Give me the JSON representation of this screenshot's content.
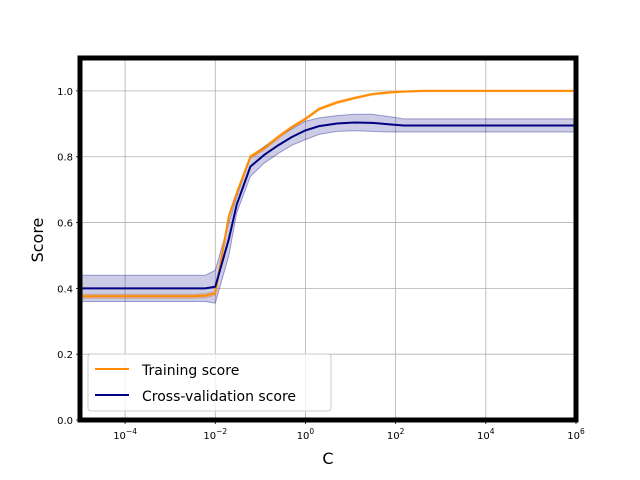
{
  "chart_data": {
    "type": "line",
    "xlabel": "C",
    "ylabel": "Score",
    "xscale": "log",
    "xlim": [
      1e-05,
      1000000.0
    ],
    "ylim": [
      0.0,
      1.1
    ],
    "grid": true,
    "legend_position": "lower-left",
    "x_tick_labels": [
      {
        "value": 0.0001,
        "base": "10",
        "exp": "−4"
      },
      {
        "value": 0.01,
        "base": "10",
        "exp": "−2"
      },
      {
        "value": 1,
        "base": "10",
        "exp": "0"
      },
      {
        "value": 100,
        "base": "10",
        "exp": "2"
      },
      {
        "value": 10000,
        "base": "10",
        "exp": "4"
      },
      {
        "value": 1000000,
        "base": "10",
        "exp": "6"
      }
    ],
    "y_tick_labels": [
      {
        "value": 0.0,
        "label": "0.0"
      },
      {
        "value": 0.2,
        "label": "0.2"
      },
      {
        "value": 0.4,
        "label": "0.4"
      },
      {
        "value": 0.6,
        "label": "0.6"
      },
      {
        "value": 0.8,
        "label": "0.8"
      },
      {
        "value": 1.0,
        "label": "1.0"
      }
    ],
    "x": [
      1e-05,
      0.0001,
      0.001,
      0.003,
      0.006,
      0.01,
      0.02,
      0.03,
      0.06,
      0.12,
      0.25,
      0.5,
      1,
      2,
      5,
      12,
      30,
      80,
      150,
      400,
      1000,
      10000,
      100000,
      1000000
    ],
    "series": [
      {
        "name": "Training score",
        "color": "#ff8c00",
        "values": [
          0.376,
          0.376,
          0.376,
          0.376,
          0.378,
          0.385,
          0.62,
          0.69,
          0.8,
          0.825,
          0.86,
          0.89,
          0.915,
          0.945,
          0.965,
          0.978,
          0.99,
          0.996,
          0.998,
          1.0,
          1.0,
          1.0,
          1.0,
          1.0
        ],
        "lower": [
          0.37,
          0.37,
          0.37,
          0.37,
          0.372,
          0.379,
          0.615,
          0.685,
          0.795,
          0.82,
          0.855,
          0.886,
          0.911,
          0.941,
          0.961,
          0.975,
          0.987,
          0.993,
          0.996,
          0.998,
          0.998,
          0.998,
          0.998,
          0.998
        ],
        "upper": [
          0.382,
          0.382,
          0.382,
          0.382,
          0.384,
          0.391,
          0.625,
          0.695,
          0.805,
          0.83,
          0.865,
          0.894,
          0.919,
          0.949,
          0.969,
          0.981,
          0.993,
          0.999,
          1.0,
          1.002,
          1.002,
          1.002,
          1.002,
          1.002
        ]
      },
      {
        "name": "Cross-validation score",
        "color": "#000080",
        "values": [
          0.4,
          0.4,
          0.4,
          0.4,
          0.4,
          0.405,
          0.55,
          0.655,
          0.77,
          0.805,
          0.835,
          0.86,
          0.88,
          0.893,
          0.901,
          0.904,
          0.903,
          0.898,
          0.895,
          0.895,
          0.895,
          0.895,
          0.895,
          0.895
        ],
        "lower": [
          0.36,
          0.36,
          0.36,
          0.36,
          0.36,
          0.355,
          0.5,
          0.63,
          0.74,
          0.78,
          0.81,
          0.835,
          0.852,
          0.868,
          0.877,
          0.879,
          0.877,
          0.875,
          0.875,
          0.875,
          0.875,
          0.875,
          0.875,
          0.875
        ],
        "upper": [
          0.44,
          0.44,
          0.44,
          0.44,
          0.44,
          0.455,
          0.6,
          0.68,
          0.8,
          0.83,
          0.86,
          0.885,
          0.908,
          0.918,
          0.925,
          0.929,
          0.929,
          0.921,
          0.915,
          0.915,
          0.915,
          0.915,
          0.915,
          0.915
        ]
      }
    ],
    "band_opacity": 0.2
  }
}
